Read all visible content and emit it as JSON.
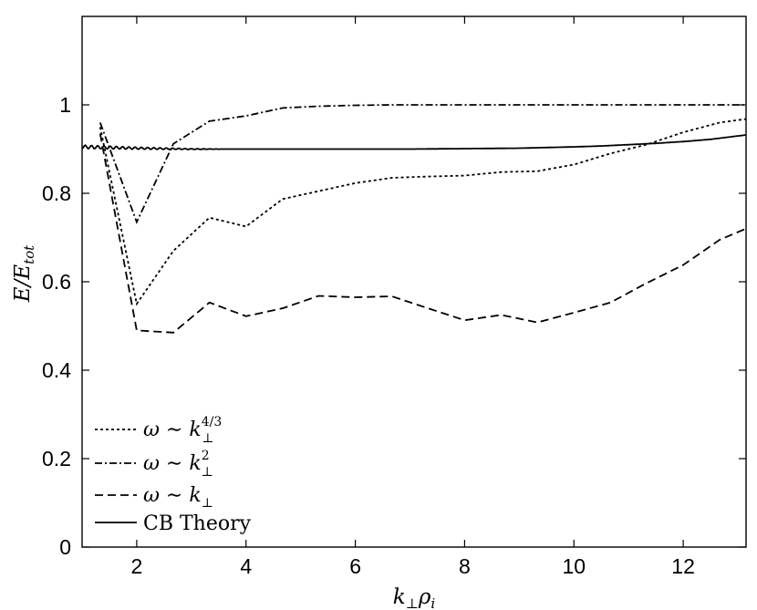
{
  "chart_data": {
    "type": "line",
    "xlabel": "k⊥ρi",
    "ylabel": "E/Etot",
    "xlim": [
      1,
      13.15
    ],
    "ylim": [
      0,
      1.2
    ],
    "xticks": [
      2,
      4,
      6,
      8,
      10,
      12
    ],
    "yticks": [
      0,
      0.2,
      0.4,
      0.6,
      0.8,
      1
    ],
    "xtick_labels": [
      "2",
      "4",
      "6",
      "8",
      "10",
      "12"
    ],
    "ytick_labels": [
      "0",
      "0.2",
      "0.4",
      "0.6",
      "0.8",
      "1"
    ],
    "grid": false,
    "legend_position": "bottom-left",
    "series": [
      {
        "name": "ω ∼ k⊥^4/3",
        "style": "dotted",
        "x": [
          1.33,
          2.0,
          2.67,
          3.33,
          4.0,
          4.67,
          5.33,
          6.0,
          6.67,
          7.33,
          8.0,
          8.67,
          9.33,
          10.0,
          10.67,
          11.33,
          12.0,
          12.67,
          13.15
        ],
        "y": [
          0.95,
          0.55,
          0.67,
          0.745,
          0.725,
          0.787,
          0.805,
          0.823,
          0.835,
          0.838,
          0.84,
          0.848,
          0.85,
          0.865,
          0.89,
          0.91,
          0.938,
          0.96,
          0.968
        ]
      },
      {
        "name": "ω ∼ k⊥^2",
        "style": "dashdot",
        "x": [
          1.33,
          2.0,
          2.67,
          3.33,
          4.0,
          4.67,
          5.33,
          6.0,
          6.67,
          7.33,
          8.0,
          8.67,
          9.33,
          10.0,
          10.67,
          11.33,
          12.0,
          12.67,
          13.15
        ],
        "y": [
          0.96,
          0.735,
          0.912,
          0.963,
          0.975,
          0.993,
          0.997,
          0.999,
          1.0,
          1.0,
          1.0,
          1.0,
          1.0,
          1.0,
          1.0,
          1.0,
          1.0,
          1.0,
          1.0
        ]
      },
      {
        "name": "ω ∼ k⊥",
        "style": "dashed",
        "x": [
          1.33,
          2.0,
          2.67,
          3.33,
          4.0,
          4.67,
          5.33,
          6.0,
          6.67,
          7.33,
          8.0,
          8.67,
          9.33,
          10.0,
          10.67,
          11.33,
          12.0,
          12.67,
          13.15
        ],
        "y": [
          0.935,
          0.49,
          0.485,
          0.553,
          0.522,
          0.54,
          0.568,
          0.565,
          0.567,
          0.54,
          0.513,
          0.525,
          0.508,
          0.53,
          0.553,
          0.597,
          0.638,
          0.695,
          0.72
        ]
      },
      {
        "name": "CB Theory",
        "style": "solid",
        "x": [
          1.0,
          2.0,
          3.0,
          4.0,
          5.0,
          6.0,
          7.0,
          8.0,
          9.0,
          10.0,
          10.5,
          11.0,
          11.5,
          12.0,
          12.5,
          13.15
        ],
        "y": [
          0.905,
          0.902,
          0.9,
          0.9,
          0.9,
          0.9,
          0.9,
          0.901,
          0.902,
          0.905,
          0.907,
          0.91,
          0.913,
          0.917,
          0.922,
          0.932
        ]
      }
    ]
  }
}
